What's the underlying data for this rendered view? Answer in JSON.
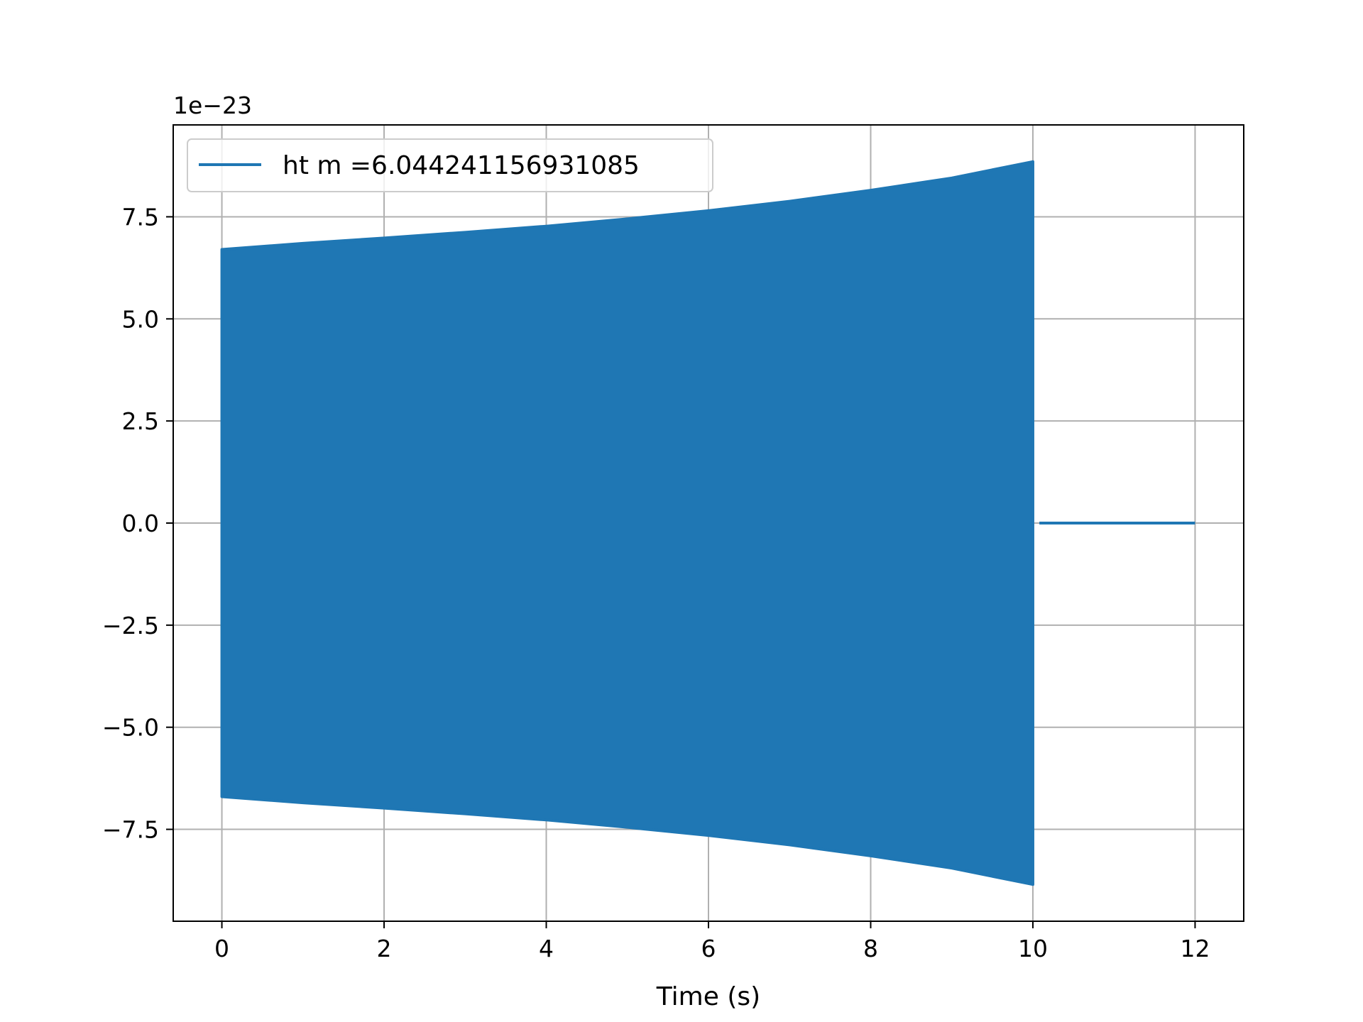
{
  "chart_data": {
    "type": "line",
    "xlabel": "Time (s)",
    "ylabel": "",
    "offset_text": "1e−23",
    "xlim": [
      -0.6,
      12.6
    ],
    "ylim": [
      -9.75,
      9.75
    ],
    "x_ticks": [
      0,
      2,
      4,
      6,
      8,
      10,
      12
    ],
    "x_tick_labels": [
      "0",
      "2",
      "4",
      "6",
      "8",
      "10",
      "12"
    ],
    "y_ticks": [
      -7.5,
      -5.0,
      -2.5,
      0.0,
      2.5,
      5.0,
      7.5
    ],
    "y_tick_labels": [
      "−7.5",
      "−5.0",
      "−2.5",
      "0.0",
      "2.5",
      "5.0",
      "7.5"
    ],
    "grid": true,
    "legend_position": "upper-left",
    "series": [
      {
        "name": "ht m =6.044241156931085",
        "color": "#1f77b4",
        "envelope_upper": [
          [
            0.0,
            6.7
          ],
          [
            1.0,
            6.85
          ],
          [
            2.0,
            6.98
          ],
          [
            3.0,
            7.12
          ],
          [
            4.0,
            7.27
          ],
          [
            5.0,
            7.45
          ],
          [
            6.0,
            7.65
          ],
          [
            7.0,
            7.88
          ],
          [
            8.0,
            8.15
          ],
          [
            9.0,
            8.45
          ],
          [
            10.0,
            8.85
          ]
        ],
        "envelope_lower": [
          [
            0.0,
            -6.7
          ],
          [
            1.0,
            -6.85
          ],
          [
            2.0,
            -6.98
          ],
          [
            3.0,
            -7.12
          ],
          [
            4.0,
            -7.27
          ],
          [
            5.0,
            -7.45
          ],
          [
            6.0,
            -7.65
          ],
          [
            7.0,
            -7.88
          ],
          [
            8.0,
            -8.15
          ],
          [
            9.0,
            -8.45
          ],
          [
            10.0,
            -8.85
          ]
        ],
        "flat_tail": [
          [
            10.08,
            0.0
          ],
          [
            12.0,
            0.0
          ]
        ]
      }
    ]
  }
}
